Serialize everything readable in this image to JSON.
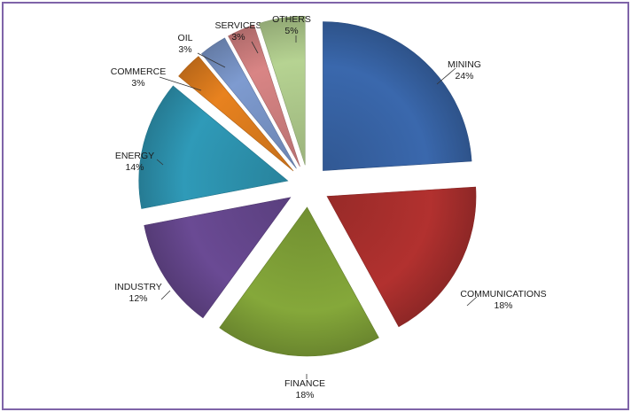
{
  "chart_data": {
    "type": "pie",
    "title": "",
    "exploded": true,
    "legend": "none",
    "slices": [
      {
        "label": "MINING",
        "value": 24,
        "value_label": "24%",
        "color": "#3a68ad"
      },
      {
        "label": "COMMUNICATIONS",
        "value": 18,
        "value_label": "18%",
        "color": "#b2312f"
      },
      {
        "label": "FINANCE",
        "value": 18,
        "value_label": "18%",
        "color": "#85a83a"
      },
      {
        "label": "INDUSTRY",
        "value": 12,
        "value_label": "12%",
        "color": "#6a4a94"
      },
      {
        "label": "ENERGY",
        "value": 14,
        "value_label": "14%",
        "color": "#2f9ab8"
      },
      {
        "label": "COMMERCE",
        "value": 3,
        "value_label": "3%",
        "color": "#e8821f"
      },
      {
        "label": "OIL",
        "value": 3,
        "value_label": "3%",
        "color": "#7e9bd0"
      },
      {
        "label": "SERVICES",
        "value": 3,
        "value_label": "3%",
        "color": "#d98585"
      },
      {
        "label": "OTHERS",
        "value": 5,
        "value_label": "5%",
        "color": "#b6d392"
      }
    ]
  }
}
